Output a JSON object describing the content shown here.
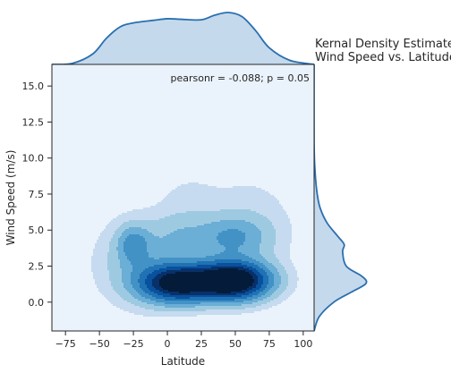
{
  "chart_data": {
    "type": "kde_joint",
    "title_lines": [
      "Kernal Density Estimate",
      "Wind Speed vs. Latitude"
    ],
    "xlabel": "Latitude",
    "ylabel": "Wind Speed (m/s)",
    "xlim": [
      -85,
      108
    ],
    "ylim": [
      -2.0,
      16.5
    ],
    "xticks": [
      -75,
      -50,
      -25,
      0,
      25,
      50,
      75,
      100
    ],
    "yticks": [
      0.0,
      2.5,
      5.0,
      7.5,
      10.0,
      12.5,
      15.0
    ],
    "xtick_labels": [
      "−75",
      "−50",
      "−25",
      "0",
      "25",
      "50",
      "75",
      "100"
    ],
    "ytick_labels": [
      "0.0",
      "2.5",
      "5.0",
      "7.5",
      "10.0",
      "12.5",
      "15.0"
    ],
    "annotation": "pearsonr = -0.088; p = 0.05",
    "grid": false,
    "colors": {
      "background": "#eaf2fb",
      "levels": [
        "#c6dbef",
        "#9ecae1",
        "#6baed6",
        "#4292c6",
        "#2171b5",
        "#08519c",
        "#08306b",
        "#041c3a"
      ],
      "marginal_fill": "#c5d9ec",
      "marginal_line": "#2a6fb0"
    },
    "density_components": [
      {
        "x": 5,
        "y": 1.3,
        "sx": 18,
        "sy": 0.9,
        "w": 1.0
      },
      {
        "x": 50,
        "y": 1.5,
        "sx": 18,
        "sy": 0.9,
        "w": 1.25
      },
      {
        "x": 28,
        "y": 1.4,
        "sx": 22,
        "sy": 0.9,
        "w": 0.45
      },
      {
        "x": -25,
        "y": 4.0,
        "sx": 8,
        "sy": 0.9,
        "w": 0.35
      },
      {
        "x": 48,
        "y": 4.5,
        "sx": 18,
        "sy": 1.0,
        "w": 0.35
      },
      {
        "x": 10,
        "y": 4.6,
        "sx": 16,
        "sy": 1.2,
        "w": 0.18
      },
      {
        "x": -20,
        "y": 2.8,
        "sx": 22,
        "sy": 2.0,
        "w": 0.22
      },
      {
        "x": 15,
        "y": 7.5,
        "sx": 15,
        "sy": 1.0,
        "w": 0.06
      },
      {
        "x": 60,
        "y": 5.5,
        "sx": 25,
        "sy": 2.5,
        "w": 0.1
      }
    ],
    "marginal_x": {
      "x": [
        -85,
        -70,
        -55,
        -45,
        -35,
        -25,
        -10,
        0,
        10,
        25,
        35,
        45,
        55,
        65,
        75,
        90,
        108
      ],
      "density": [
        0.0,
        0.02,
        0.2,
        0.5,
        0.72,
        0.8,
        0.85,
        0.88,
        0.87,
        0.86,
        0.95,
        1.0,
        0.92,
        0.65,
        0.32,
        0.08,
        0.0
      ]
    },
    "marginal_y": {
      "y": [
        -2.0,
        -1.0,
        0.0,
        0.7,
        1.3,
        1.8,
        2.5,
        3.5,
        4.0,
        4.6,
        5.5,
        6.5,
        7.5,
        9.0,
        11.0,
        16.5
      ],
      "density": [
        0.0,
        0.1,
        0.38,
        0.72,
        1.0,
        0.92,
        0.62,
        0.55,
        0.58,
        0.45,
        0.25,
        0.12,
        0.06,
        0.02,
        0.0,
        0.0
      ]
    }
  }
}
